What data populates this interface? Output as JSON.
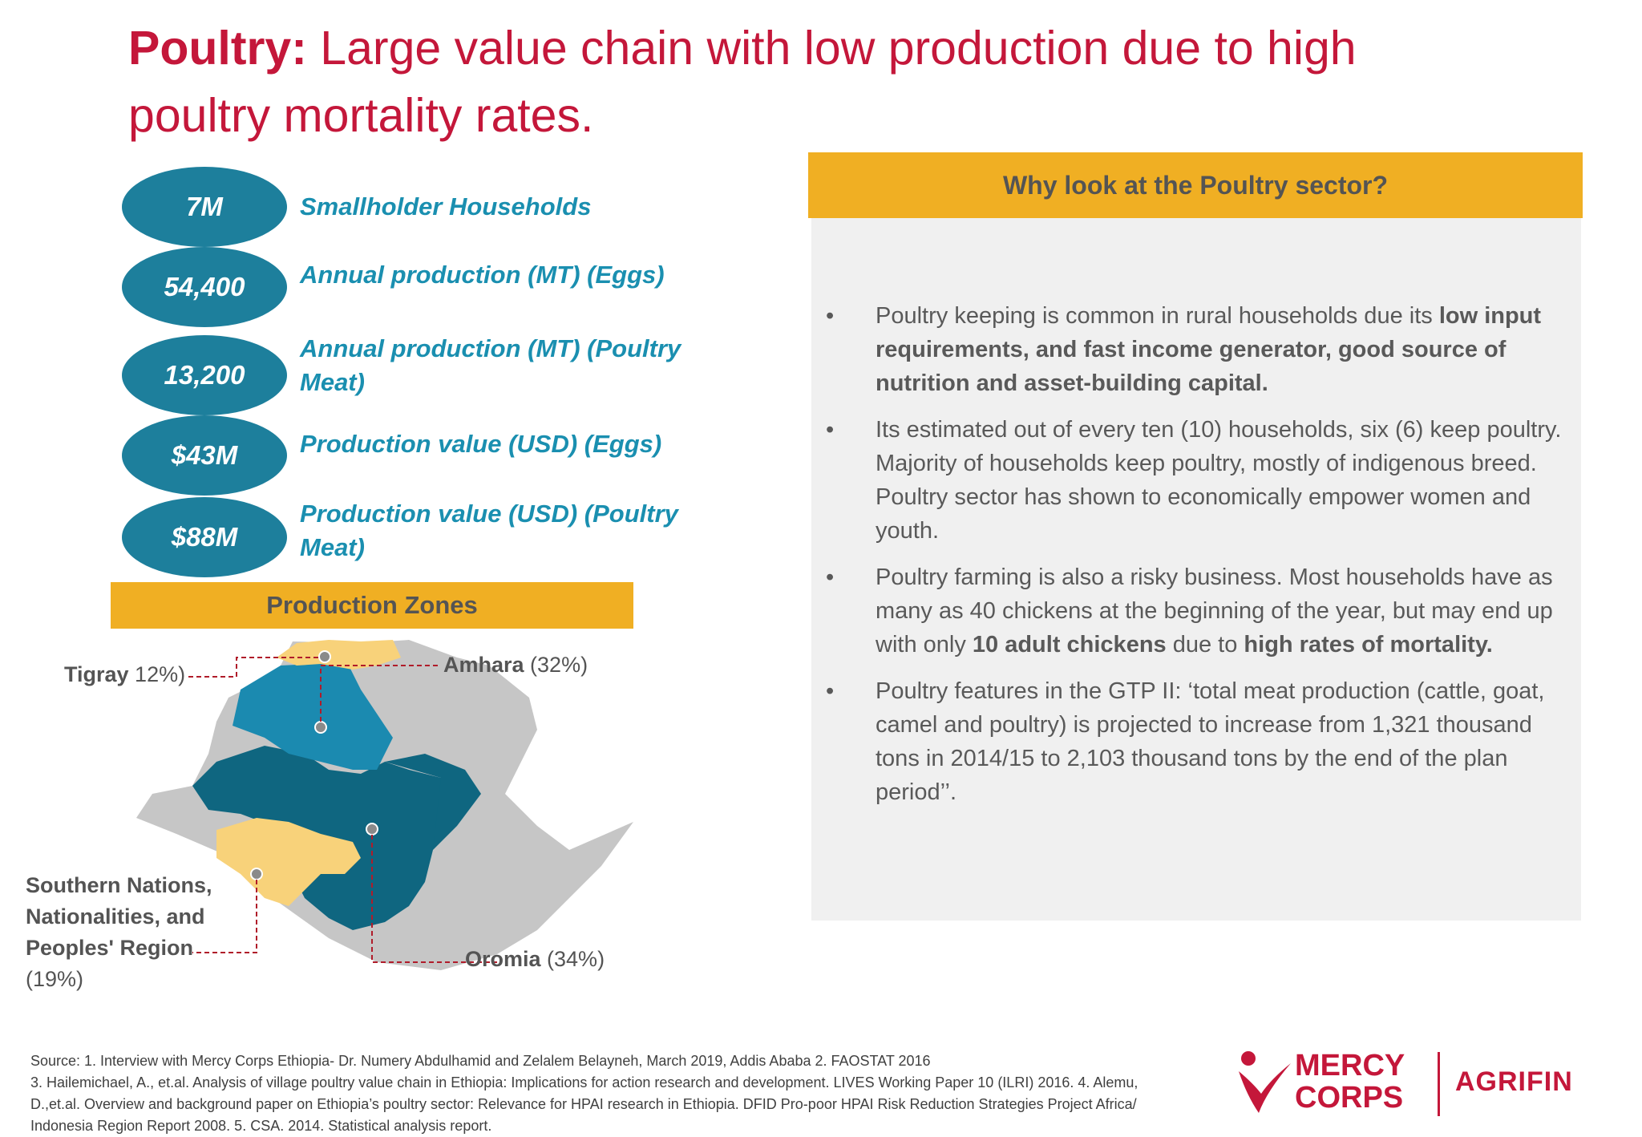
{
  "title": {
    "bold": "Poultry:",
    "rest": " Large value chain with low production due to high poultry mortality rates."
  },
  "stats": [
    {
      "value": "7M",
      "label": "Smallholder Households"
    },
    {
      "value": "54,400",
      "label": "Annual production (MT) (Eggs)"
    },
    {
      "value": "13,200",
      "label": "Annual production (MT) (Poultry Meat)"
    },
    {
      "value": "$43M",
      "label": "Production value (USD) (Eggs)"
    },
    {
      "value": "$88M",
      "label": "Production value (USD) (Poultry Meat)"
    }
  ],
  "zones": {
    "heading": "Production Zones",
    "tigray": {
      "name": "Tigray",
      "pct": " 12%)"
    },
    "amhara": {
      "name": "Amhara",
      "pct": " (32%)"
    },
    "snnpr": {
      "name": "Southern Nations, Nationalities, and Peoples' Region",
      "pct": "(19%)"
    },
    "oromia": {
      "name": "Oromia",
      "pct": " (34%)"
    }
  },
  "why": {
    "heading": "Why look at the Poultry sector?",
    "bullet_char": "•",
    "bullets": [
      {
        "a": "Poultry keeping is common in rural households due its ",
        "b": "low input requirements, and fast income generator, good source of nutrition and asset-building capital.",
        "c": "",
        "d": "",
        "e": ""
      },
      {
        "a": " Its estimated out of every ten (10) households, six (6) keep poultry. Majority of households keep poultry, mostly of indigenous breed. Poultry sector has shown to economically empower women and youth.",
        "b": "",
        "c": "",
        "d": "",
        "e": ""
      },
      {
        "a": "Poultry farming is also a risky business. Most households have as many as 40 chickens at the beginning of the year, but may end up with only ",
        "b": "10 adult chickens",
        "c": " due to ",
        "d": "high rates of mortality.",
        "e": ""
      },
      {
        "a": "Poultry features in the GTP II: ‘total meat production (cattle, goat, camel and poultry) is projected to increase from 1,321 thousand tons in 2014/15 to 2,103 thousand tons by the end of the plan period’’.",
        "b": "",
        "c": "",
        "d": "",
        "e": ""
      }
    ]
  },
  "source": {
    "line1": "Source: 1. Interview with Mercy Corps Ethiopia- Dr. Numery Abdulhamid and Zelalem Belayneh, March 2019, Addis Ababa   2. FAOSTAT 2016",
    "line2": "3. Hailemichael, A., et.al. Analysis of village poultry value chain in Ethiopia: Implications for action research and development. LIVES Working Paper 10  (ILRI) 2016.   4. Alemu,",
    "line3": "D.,et.al. Overview and background paper on Ethiopia’s poultry sector: Relevance for HPAI research in Ethiopia. DFID Pro-poor HPAI Risk Reduction Strategies Project Africa/",
    "line4": "Indonesia Region Report  2008.  5. CSA. 2014. Statistical analysis report."
  },
  "logos": {
    "mercy": "MERCY",
    "corps": "CORPS",
    "agrifin": "AGRIFIN"
  },
  "colors": {
    "title_red": "#c4173a",
    "oval_teal": "#1d7f9c",
    "label_teal": "#1a8fb0",
    "header_orange": "#f0af23",
    "panel_gray": "#f0f0f0",
    "amhara_blue": "#1b8ab0",
    "oromia_teal": "#0f6680",
    "highlight_yellow": "#f8d27a",
    "other_gray": "#c6c6c6"
  }
}
